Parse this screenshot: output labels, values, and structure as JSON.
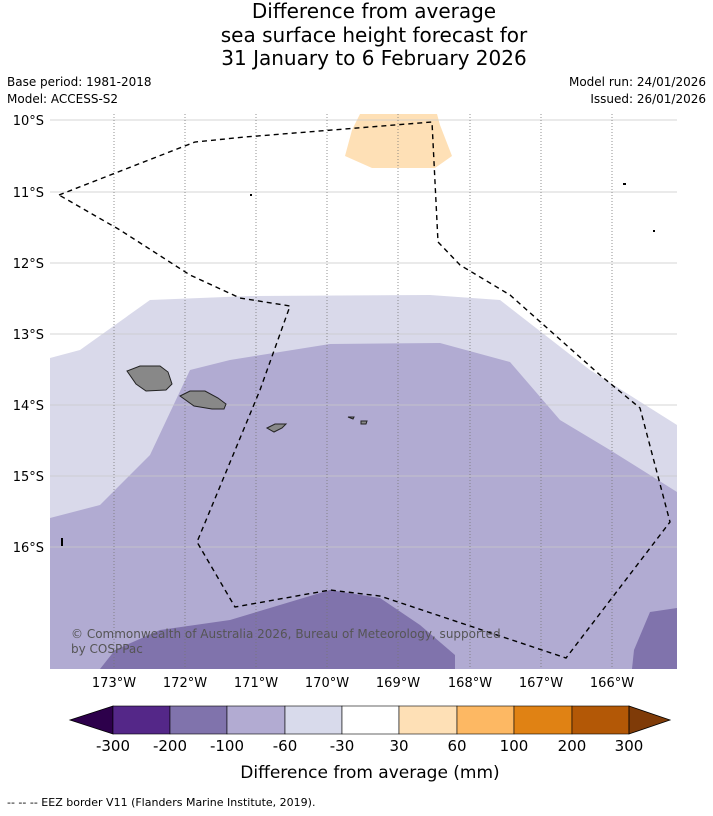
{
  "title": {
    "line1": "Difference from average",
    "line2": "sea surface height forecast for",
    "line3": "31 January to 6 February 2026"
  },
  "meta": {
    "base_period": "Base period: 1981-2018",
    "model": "Model: ACCESS-S2",
    "model_run": "Model run: 24/01/2026",
    "issued": "Issued: 26/01/2026"
  },
  "map": {
    "lat_labels": [
      "10°S",
      "11°S",
      "12°S",
      "13°S",
      "14°S",
      "15°S",
      "16°S"
    ],
    "lon_labels": [
      "173°W",
      "172°W",
      "171°W",
      "170°W",
      "169°W",
      "168°W",
      "167°W",
      "166°W"
    ],
    "copyright_line1": "© Commonwealth of Australia 2026, Bureau of Meteorology, supported",
    "copyright_line2": "by COSPPac",
    "colors": {
      "neg_100_60": "#d9d9ea",
      "neg_200_100": "#b1abd2",
      "neg_300_200": "#8073ac",
      "pos_30_60": "#fee0b6",
      "land": "#888888",
      "eez_line": "#000000"
    }
  },
  "colorbar": {
    "ticks": [
      "-300",
      "-200",
      "-100",
      "-60",
      "-30",
      "30",
      "60",
      "100",
      "200",
      "300"
    ],
    "colors": [
      "#2d004b",
      "#542788",
      "#8073ac",
      "#b2abd2",
      "#d8daeb",
      "#ffffff",
      "#fee0b6",
      "#fdb863",
      "#e08214",
      "#b35806",
      "#7f3b08"
    ],
    "title": "Difference from average (mm)"
  },
  "footer": "--  --  -- EEZ border V11 (Flanders Marine Institute, 2019)."
}
